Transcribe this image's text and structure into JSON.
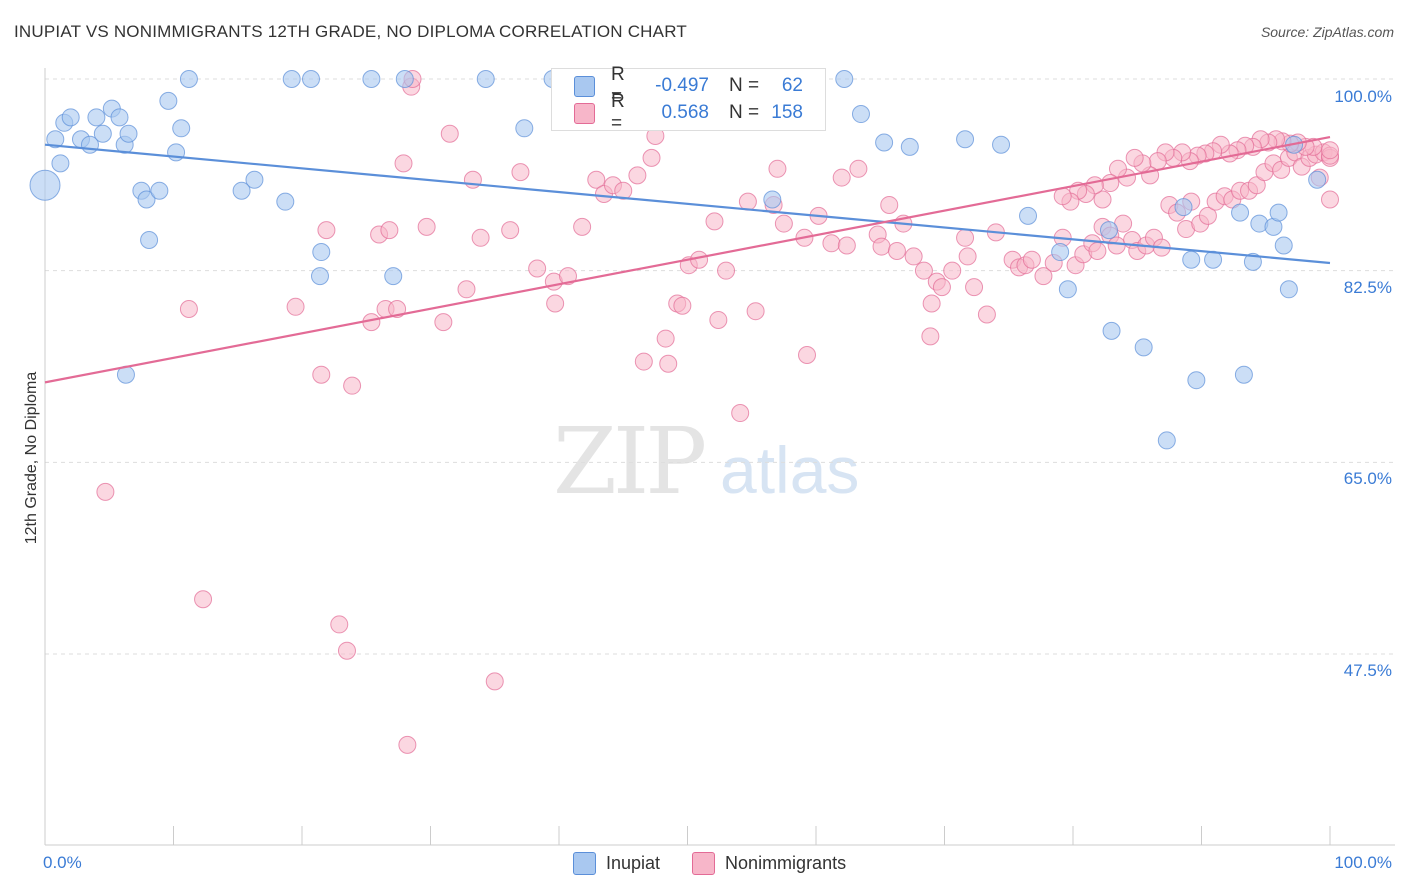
{
  "title": "INUPIAT VS NONIMMIGRANTS 12TH GRADE, NO DIPLOMA CORRELATION CHART",
  "source": "Source: ZipAtlas.com",
  "watermark": {
    "zip": "ZIP",
    "atlas": "atlas"
  },
  "legend_top": {
    "rows": [
      {
        "r_label": "R =",
        "r_value": "-0.497",
        "n_label": "N =",
        "n_value": "62",
        "color": "#a9c8f0"
      },
      {
        "r_label": "R =",
        "r_value": "0.568",
        "n_label": "N =",
        "n_value": "158",
        "color": "#f7b6c9"
      }
    ]
  },
  "legend_bottom": {
    "items": [
      {
        "label": "Inupiat",
        "color": "#a9c8f0"
      },
      {
        "label": "Nonimmigrants",
        "color": "#f7b6c9"
      }
    ]
  },
  "y_axis_title": "12th Grade, No Diploma",
  "y_tick_labels": [
    "100.0%",
    "82.5%",
    "65.0%",
    "47.5%"
  ],
  "x_tick_labels": [
    "0.0%",
    "100.0%"
  ],
  "chart_data": {
    "type": "scatter",
    "title": "INUPIAT VS NONIMMIGRANTS 12TH GRADE, NO DIPLOMA CORRELATION CHART",
    "ylabel": "12th Grade, No Diploma",
    "xlim": [
      0,
      100
    ],
    "ylim": [
      30,
      101.5
    ],
    "y_ticks": [
      100.0,
      82.5,
      65.0,
      47.5
    ],
    "grid": true,
    "series": [
      {
        "name": "Inupiat",
        "color": "#5b8fd9",
        "fill": "#a9c8f0",
        "trend": {
          "x": [
            0,
            100
          ],
          "y": [
            94.0,
            83.2
          ]
        },
        "points": [
          [
            0,
            90.3,
            "big"
          ],
          [
            0.8,
            94.5
          ],
          [
            1.5,
            96.0
          ],
          [
            1.2,
            92.3
          ],
          [
            2.0,
            96.5
          ],
          [
            2.8,
            94.5
          ],
          [
            3.5,
            94.0
          ],
          [
            4.0,
            96.5
          ],
          [
            4.5,
            95.0
          ],
          [
            5.2,
            97.3
          ],
          [
            5.8,
            96.5
          ],
          [
            6.2,
            94.0
          ],
          [
            6.5,
            95.0
          ],
          [
            6.3,
            73.0
          ],
          [
            7.5,
            89.8
          ],
          [
            7.9,
            89.0
          ],
          [
            8.1,
            85.3
          ],
          [
            8.9,
            89.8
          ],
          [
            9.6,
            98.0
          ],
          [
            10.2,
            93.3
          ],
          [
            10.6,
            95.5
          ],
          [
            11.2,
            100.0
          ],
          [
            15.3,
            89.8
          ],
          [
            16.3,
            90.8
          ],
          [
            18.7,
            88.8
          ],
          [
            19.2,
            100.0
          ],
          [
            20.7,
            100.0
          ],
          [
            21.4,
            82.0
          ],
          [
            21.5,
            84.2
          ],
          [
            25.4,
            100.0
          ],
          [
            27.1,
            82.0
          ],
          [
            28.0,
            100.0
          ],
          [
            34.3,
            100.0
          ],
          [
            37.3,
            95.5
          ],
          [
            39.5,
            100.0
          ],
          [
            47.7,
            100.0
          ],
          [
            52.7,
            97.0
          ],
          [
            56.6,
            89.0
          ],
          [
            57.2,
            100.0
          ],
          [
            62.2,
            100.0
          ],
          [
            63.5,
            96.8
          ],
          [
            65.3,
            94.2
          ],
          [
            67.3,
            93.8
          ],
          [
            71.6,
            94.5
          ],
          [
            74.4,
            94.0
          ],
          [
            76.5,
            87.5
          ],
          [
            79.0,
            84.2
          ],
          [
            79.6,
            80.8
          ],
          [
            82.8,
            86.2
          ],
          [
            83.0,
            77.0
          ],
          [
            85.5,
            75.5
          ],
          [
            87.3,
            67.0
          ],
          [
            88.6,
            88.3
          ],
          [
            89.2,
            83.5
          ],
          [
            89.6,
            72.5
          ],
          [
            90.9,
            83.5
          ],
          [
            93.0,
            87.8
          ],
          [
            93.3,
            73.0
          ],
          [
            94.0,
            83.3
          ],
          [
            94.5,
            86.8
          ],
          [
            95.6,
            86.5
          ],
          [
            96.0,
            87.8
          ],
          [
            96.4,
            84.8
          ],
          [
            96.8,
            80.8
          ],
          [
            97.2,
            94.0
          ],
          [
            99.0,
            90.8
          ]
        ]
      },
      {
        "name": "Nonimmigrants",
        "color": "#e36b96",
        "fill": "#f7b6c9",
        "trend": {
          "x": [
            0,
            100
          ],
          "y": [
            72.3,
            94.7
          ]
        },
        "points": [
          [
            4.7,
            62.3
          ],
          [
            11.2,
            79.0
          ],
          [
            12.3,
            52.5
          ],
          [
            19.5,
            79.2
          ],
          [
            21.5,
            73.0
          ],
          [
            21.9,
            86.2
          ],
          [
            22.9,
            50.2
          ],
          [
            23.5,
            47.8
          ],
          [
            23.9,
            72.0
          ],
          [
            25.4,
            77.8
          ],
          [
            26.0,
            85.8
          ],
          [
            26.5,
            79.0
          ],
          [
            26.8,
            86.2
          ],
          [
            27.4,
            79.0
          ],
          [
            27.9,
            92.3
          ],
          [
            28.2,
            39.2
          ],
          [
            28.5,
            99.3
          ],
          [
            28.6,
            100.0
          ],
          [
            29.7,
            86.5
          ],
          [
            31.0,
            77.8
          ],
          [
            31.5,
            95.0
          ],
          [
            32.8,
            80.8
          ],
          [
            33.3,
            90.8
          ],
          [
            33.9,
            85.5
          ],
          [
            35.0,
            45.0
          ],
          [
            36.2,
            86.2
          ],
          [
            37.0,
            91.5
          ],
          [
            38.3,
            82.7
          ],
          [
            39.6,
            81.5
          ],
          [
            39.7,
            79.5
          ],
          [
            40.4,
            100.0
          ],
          [
            40.7,
            82.0
          ],
          [
            41.8,
            86.5
          ],
          [
            42.9,
            90.8
          ],
          [
            43.5,
            89.5
          ],
          [
            44.2,
            90.3
          ],
          [
            45.0,
            89.8
          ],
          [
            46.1,
            91.2
          ],
          [
            46.6,
            74.2
          ],
          [
            47.2,
            92.8
          ],
          [
            47.5,
            94.8
          ],
          [
            48.3,
            76.3
          ],
          [
            48.5,
            74.0
          ],
          [
            49.2,
            79.5
          ],
          [
            49.6,
            79.3
          ],
          [
            50.1,
            83.0
          ],
          [
            50.9,
            83.5
          ],
          [
            52.1,
            87.0
          ],
          [
            52.4,
            78.0
          ],
          [
            53.0,
            82.5
          ],
          [
            54.1,
            69.5
          ],
          [
            54.7,
            88.8
          ],
          [
            55.3,
            78.8
          ],
          [
            56.7,
            88.5
          ],
          [
            57.0,
            91.8
          ],
          [
            57.5,
            86.8
          ],
          [
            59.1,
            85.5
          ],
          [
            59.3,
            74.8
          ],
          [
            60.2,
            87.5
          ],
          [
            61.2,
            85.0
          ],
          [
            62.0,
            91.0
          ],
          [
            62.4,
            84.8
          ],
          [
            63.3,
            91.8
          ],
          [
            64.8,
            85.8
          ],
          [
            65.1,
            84.7
          ],
          [
            65.7,
            88.5
          ],
          [
            66.3,
            84.3
          ],
          [
            66.8,
            86.8
          ],
          [
            67.6,
            83.8
          ],
          [
            68.4,
            82.5
          ],
          [
            68.9,
            76.5
          ],
          [
            69.0,
            79.5
          ],
          [
            69.4,
            81.5
          ],
          [
            69.8,
            81.0
          ],
          [
            70.6,
            82.5
          ],
          [
            71.6,
            85.5
          ],
          [
            71.8,
            83.8
          ],
          [
            72.3,
            81.0
          ],
          [
            73.3,
            78.5
          ],
          [
            74.0,
            86.0
          ],
          [
            75.3,
            83.5
          ],
          [
            75.8,
            82.8
          ],
          [
            76.3,
            83.0
          ],
          [
            76.8,
            83.5
          ],
          [
            77.7,
            82.0
          ],
          [
            78.5,
            83.2
          ],
          [
            79.2,
            85.5
          ],
          [
            80.2,
            83.0
          ],
          [
            80.8,
            84.0
          ],
          [
            81.5,
            85.0
          ],
          [
            81.9,
            84.3
          ],
          [
            82.3,
            86.5
          ],
          [
            82.9,
            85.7
          ],
          [
            83.4,
            84.8
          ],
          [
            83.9,
            86.8
          ],
          [
            84.6,
            85.3
          ],
          [
            85.0,
            84.3
          ],
          [
            85.7,
            84.8
          ],
          [
            86.3,
            85.5
          ],
          [
            86.9,
            84.6
          ],
          [
            87.5,
            88.5
          ],
          [
            88.1,
            87.8
          ],
          [
            88.8,
            86.3
          ],
          [
            89.2,
            88.8
          ],
          [
            89.9,
            86.8
          ],
          [
            90.5,
            87.5
          ],
          [
            91.1,
            88.8
          ],
          [
            91.8,
            89.3
          ],
          [
            92.4,
            89.0
          ],
          [
            93.0,
            89.8
          ],
          [
            93.7,
            89.8
          ],
          [
            94.3,
            90.3
          ],
          [
            94.9,
            91.5
          ],
          [
            95.6,
            92.3
          ],
          [
            96.2,
            91.7
          ],
          [
            96.8,
            92.8
          ],
          [
            97.3,
            93.3
          ],
          [
            97.8,
            92.0
          ],
          [
            98.4,
            92.8
          ],
          [
            98.9,
            93.1
          ],
          [
            99.5,
            93.3
          ],
          [
            100,
            92.8
          ],
          [
            100,
            93.0
          ],
          [
            100,
            93.5
          ],
          [
            100,
            89.0
          ],
          [
            99.2,
            91.0
          ],
          [
            98.7,
            93.8
          ],
          [
            98.1,
            93.8
          ],
          [
            97.5,
            94.2
          ],
          [
            96.9,
            94.1
          ],
          [
            96.3,
            94.3
          ],
          [
            95.8,
            94.5
          ],
          [
            95.2,
            94.2
          ],
          [
            94.6,
            94.5
          ],
          [
            94.0,
            93.8
          ],
          [
            93.4,
            93.9
          ],
          [
            92.8,
            93.5
          ],
          [
            92.2,
            93.2
          ],
          [
            91.5,
            94.0
          ],
          [
            90.9,
            93.4
          ],
          [
            90.3,
            93.2
          ],
          [
            89.7,
            93.0
          ],
          [
            89.1,
            92.5
          ],
          [
            88.5,
            93.3
          ],
          [
            87.8,
            92.8
          ],
          [
            87.2,
            93.3
          ],
          [
            86.6,
            92.5
          ],
          [
            86.0,
            91.2
          ],
          [
            85.4,
            92.3
          ],
          [
            84.8,
            92.8
          ],
          [
            84.2,
            91.0
          ],
          [
            83.5,
            91.8
          ],
          [
            82.9,
            90.5
          ],
          [
            82.3,
            89.0
          ],
          [
            81.7,
            90.3
          ],
          [
            81.0,
            89.5
          ],
          [
            80.4,
            89.8
          ],
          [
            79.8,
            88.8
          ],
          [
            79.2,
            89.3
          ]
        ]
      }
    ]
  }
}
